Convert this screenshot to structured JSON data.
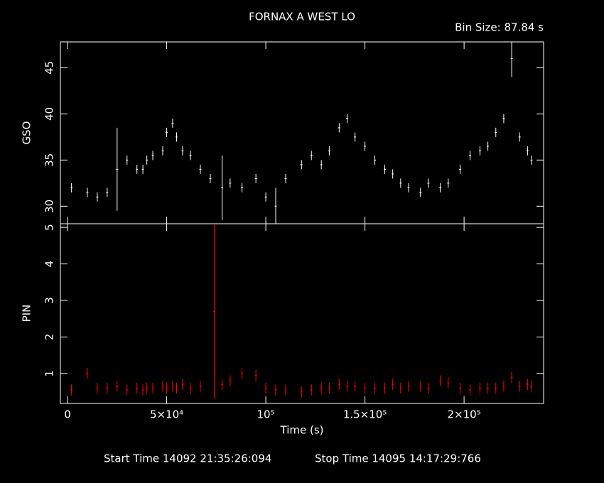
{
  "chart_data": [
    {
      "type": "errorbar",
      "title": "FORNAX A WEST LO",
      "subtitle": "Bin Size: 87.84 s",
      "ylabel": "GSO",
      "color": "#ffffff",
      "x": [
        2000,
        10000,
        15000,
        20000,
        25000,
        30000,
        35000,
        38000,
        40000,
        43000,
        48000,
        50000,
        53000,
        55000,
        58000,
        62000,
        67000,
        72000,
        78000,
        82000,
        88000,
        95000,
        100000,
        105000,
        110000,
        118000,
        123000,
        128000,
        132000,
        137000,
        141000,
        145000,
        150000,
        155000,
        160000,
        164000,
        168000,
        172000,
        178000,
        182000,
        188000,
        192000,
        198000,
        203000,
        208000,
        212000,
        216000,
        220000,
        224000,
        228000,
        232000,
        234000
      ],
      "values": [
        32,
        31.5,
        31,
        31.5,
        34,
        35,
        34,
        34,
        35,
        35.5,
        36,
        38,
        39,
        37.5,
        36,
        35.5,
        34,
        33,
        32,
        32.5,
        32,
        33,
        31,
        30,
        33,
        34.5,
        35.5,
        34.5,
        36,
        38.5,
        39.5,
        37.5,
        36.5,
        35,
        34,
        33.5,
        32.5,
        32,
        31.5,
        32.5,
        32,
        32.5,
        34,
        35.5,
        36,
        36.5,
        38,
        39.5,
        46,
        37.5,
        36,
        35
      ],
      "errors": [
        0.5,
        0.5,
        0.5,
        0.5,
        4.5,
        0.5,
        0.5,
        0.5,
        0.5,
        0.5,
        0.5,
        0.5,
        0.5,
        0.5,
        0.5,
        0.5,
        0.5,
        0.5,
        3.5,
        0.5,
        0.5,
        0.5,
        0.5,
        2,
        0.5,
        0.5,
        0.5,
        0.5,
        0.5,
        0.5,
        0.5,
        0.5,
        0.5,
        0.5,
        0.5,
        0.5,
        0.5,
        0.5,
        0.5,
        0.5,
        0.5,
        0.5,
        0.5,
        0.5,
        0.5,
        0.5,
        0.5,
        0.5,
        2,
        0.5,
        0.5,
        0.5
      ],
      "xlim": [
        -3600,
        240100
      ],
      "ylim": [
        28.1,
        47.8
      ],
      "yticks": [
        30,
        35,
        40,
        45
      ]
    },
    {
      "type": "errorbar",
      "ylabel": "PIN",
      "xlabel": "Time (s)",
      "start_time": "Start Time 14092 21:35:26:094",
      "stop_time": "Stop Time 14095 14:17:29:766",
      "color": "#ff0000",
      "x": [
        2000,
        10000,
        15000,
        20000,
        25000,
        30000,
        35000,
        38000,
        40000,
        43000,
        48000,
        50000,
        53000,
        55000,
        58000,
        62000,
        67000,
        74000,
        78000,
        82000,
        88000,
        95000,
        100000,
        105000,
        110000,
        118000,
        123000,
        128000,
        132000,
        137000,
        141000,
        145000,
        150000,
        155000,
        160000,
        164000,
        168000,
        172000,
        178000,
        182000,
        188000,
        192000,
        198000,
        203000,
        208000,
        212000,
        216000,
        220000,
        224000,
        228000,
        232000,
        234000
      ],
      "values": [
        0.55,
        1.0,
        0.6,
        0.6,
        0.65,
        0.55,
        0.6,
        0.55,
        0.6,
        0.6,
        0.65,
        0.6,
        0.65,
        0.6,
        0.7,
        0.6,
        0.65,
        2.7,
        0.7,
        0.8,
        1.0,
        0.95,
        0.6,
        0.55,
        0.55,
        0.5,
        0.55,
        0.6,
        0.6,
        0.7,
        0.65,
        0.65,
        0.6,
        0.6,
        0.6,
        0.7,
        0.6,
        0.65,
        0.65,
        0.6,
        0.8,
        0.75,
        0.6,
        0.55,
        0.6,
        0.6,
        0.6,
        0.65,
        0.9,
        0.65,
        0.7,
        0.65
      ],
      "errors": [
        0.15,
        0.15,
        0.15,
        0.15,
        0.15,
        0.15,
        0.15,
        0.15,
        0.15,
        0.15,
        0.15,
        0.15,
        0.15,
        0.15,
        0.15,
        0.15,
        0.15,
        2.4,
        0.15,
        0.15,
        0.15,
        0.15,
        0.15,
        0.15,
        0.15,
        0.15,
        0.15,
        0.15,
        0.15,
        0.15,
        0.15,
        0.15,
        0.15,
        0.15,
        0.15,
        0.15,
        0.15,
        0.15,
        0.15,
        0.15,
        0.15,
        0.15,
        0.15,
        0.15,
        0.15,
        0.15,
        0.15,
        0.15,
        0.15,
        0.15,
        0.15,
        0.15
      ],
      "xlim": [
        -3600,
        240100
      ],
      "ylim": [
        0.18,
        5.1
      ],
      "yticks": [
        1,
        2,
        3,
        4,
        5
      ],
      "xticks": [
        0,
        {
          "value": 50000,
          "label": "5×10⁴"
        },
        {
          "value": 100000,
          "label": "10⁵"
        },
        {
          "value": 150000,
          "label": "1.5×10⁵"
        },
        {
          "value": 200000,
          "label": "2×10⁵"
        }
      ]
    }
  ]
}
